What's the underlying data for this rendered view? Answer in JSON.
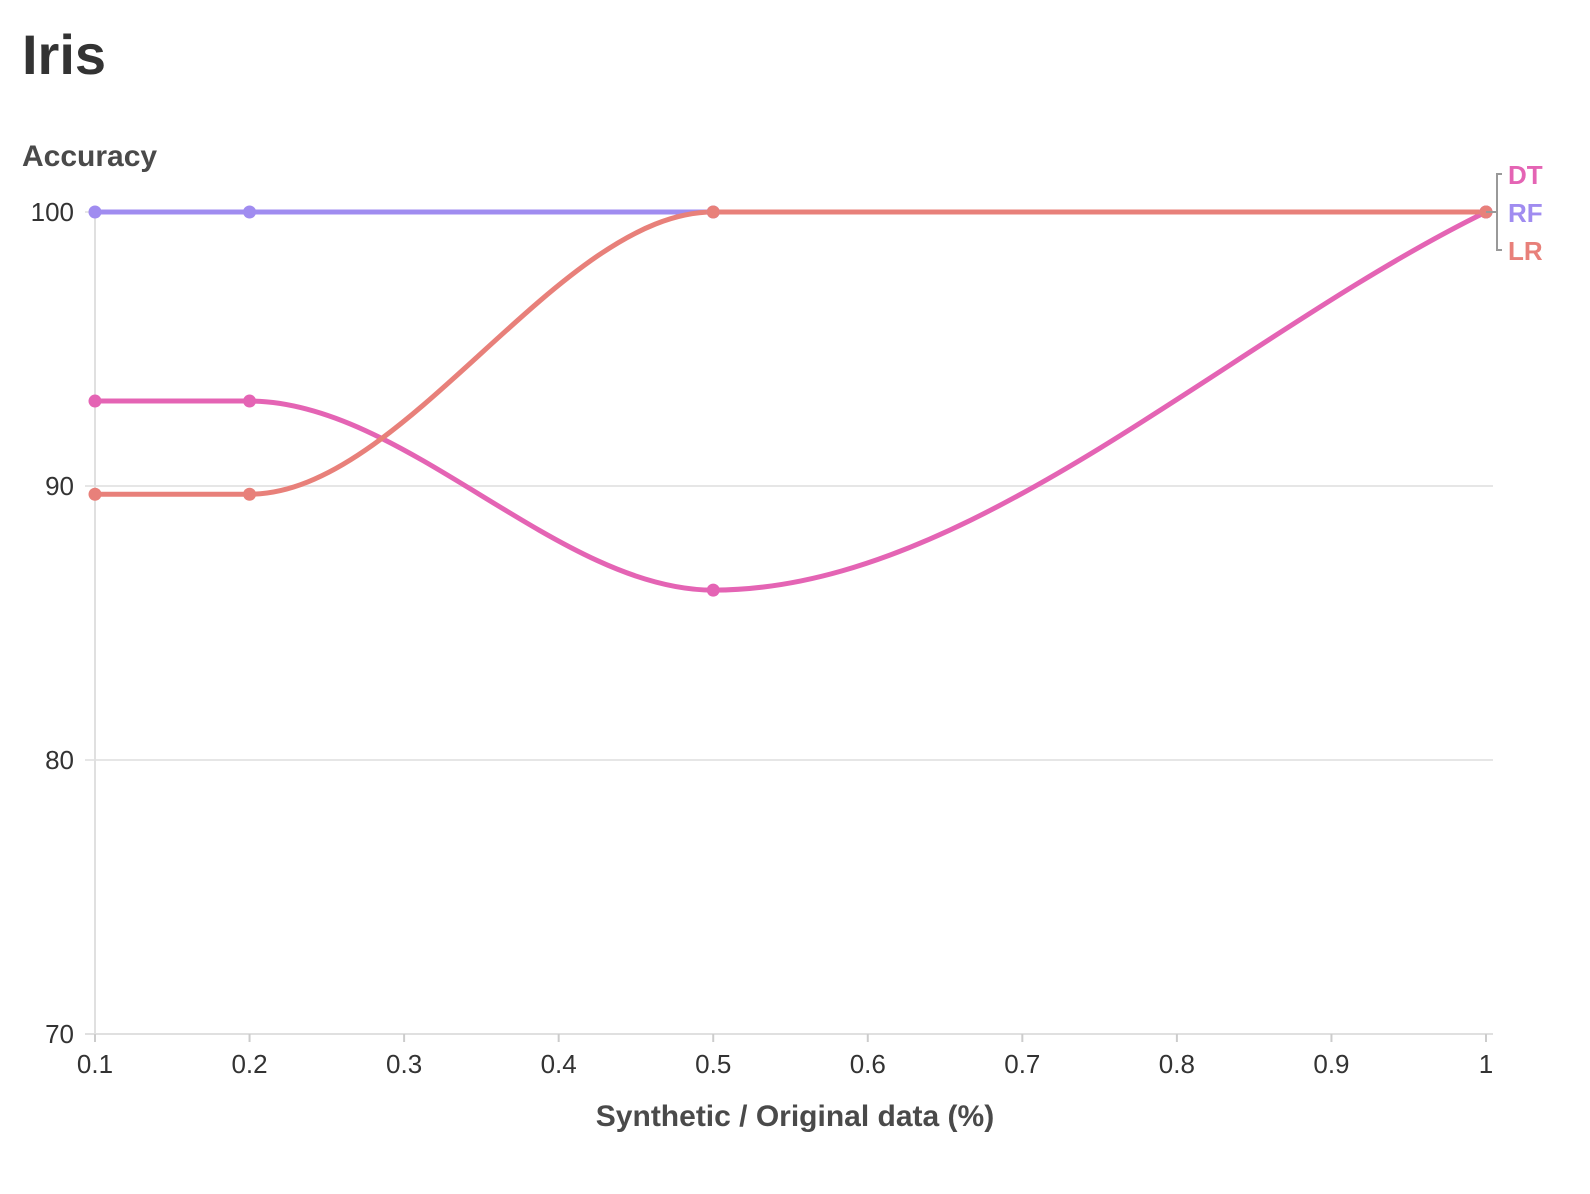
{
  "chart_data": {
    "type": "line",
    "title": "Iris",
    "xlabel": "Synthetic / Original data (%)",
    "ylabel": "Accuracy",
    "xlim": [
      0.1,
      1
    ],
    "ylim": [
      70,
      100
    ],
    "x_ticks": [
      "0.1",
      "0.2",
      "0.3",
      "0.4",
      "0.5",
      "0.6",
      "0.7",
      "0.8",
      "0.9",
      "1"
    ],
    "y_ticks": [
      "70",
      "80",
      "90",
      "100"
    ],
    "grid": "horizontal",
    "legend_position": "right-end",
    "x": [
      0.1,
      0.2,
      0.5,
      1
    ],
    "series": [
      {
        "name": "RF",
        "color": "#a08cf0",
        "values": [
          100,
          100,
          100,
          100
        ]
      },
      {
        "name": "DT",
        "color": "#e464b4",
        "values": [
          93.1,
          93.1,
          86.2,
          100
        ]
      },
      {
        "name": "LR",
        "color": "#e8807a",
        "values": [
          89.7,
          89.7,
          100,
          100
        ]
      }
    ]
  }
}
